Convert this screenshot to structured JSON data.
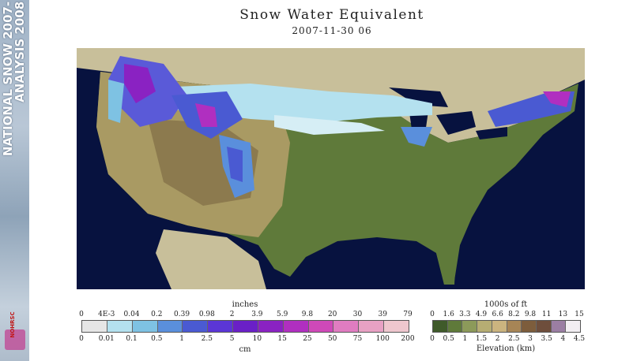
{
  "banner": {
    "line1": "NATIONAL SNOW 2007-",
    "line2": "ANALYSIS 2008",
    "logo_label": "NOHRSC"
  },
  "title": "Snow Water Equivalent",
  "subtitle": "2007-11-30 06",
  "map": {
    "description_icon": "us-map-snow-water-equivalent"
  },
  "swe_legend": {
    "top_label": "inches",
    "bottom_label": "cm",
    "inch_ticks": [
      "0",
      "4E-3",
      "0.04",
      "0.2",
      "0.39",
      "0.98",
      "2",
      "3.9",
      "5.9",
      "9.8",
      "20",
      "30",
      "39",
      "79"
    ],
    "cm_ticks": [
      "0",
      "0.01",
      "0.1",
      "0.5",
      "1",
      "2.5",
      "5",
      "10",
      "15",
      "25",
      "50",
      "75",
      "100",
      "200"
    ],
    "colors": [
      "#e6e6e6",
      "#b4e1ef",
      "#7ec2e3",
      "#5a8fdc",
      "#4a5ad2",
      "#5b36d6",
      "#6a20c7",
      "#8a22c2",
      "#b02fc0",
      "#cf49b8",
      "#e07cc1",
      "#e8a1c4",
      "#efc7ce"
    ]
  },
  "elev_legend": {
    "top_label": "1000s of ft",
    "bottom_label": "Elevation (km)",
    "ft_ticks": [
      "0",
      "1.6",
      "3.3",
      "4.9",
      "6.6",
      "8.2",
      "9.8",
      "11",
      "13",
      "15"
    ],
    "km_ticks": [
      "0",
      "0.5",
      "1",
      "1.5",
      "2",
      "2.5",
      "3",
      "3.5",
      "4",
      "4.5"
    ],
    "colors": [
      "#3f5a2a",
      "#5f7a3a",
      "#8c9a5a",
      "#b6ad73",
      "#cbb47f",
      "#a78556",
      "#7d5d3c",
      "#6e4e3c",
      "#9b7ea3",
      "#f2eef2"
    ]
  }
}
